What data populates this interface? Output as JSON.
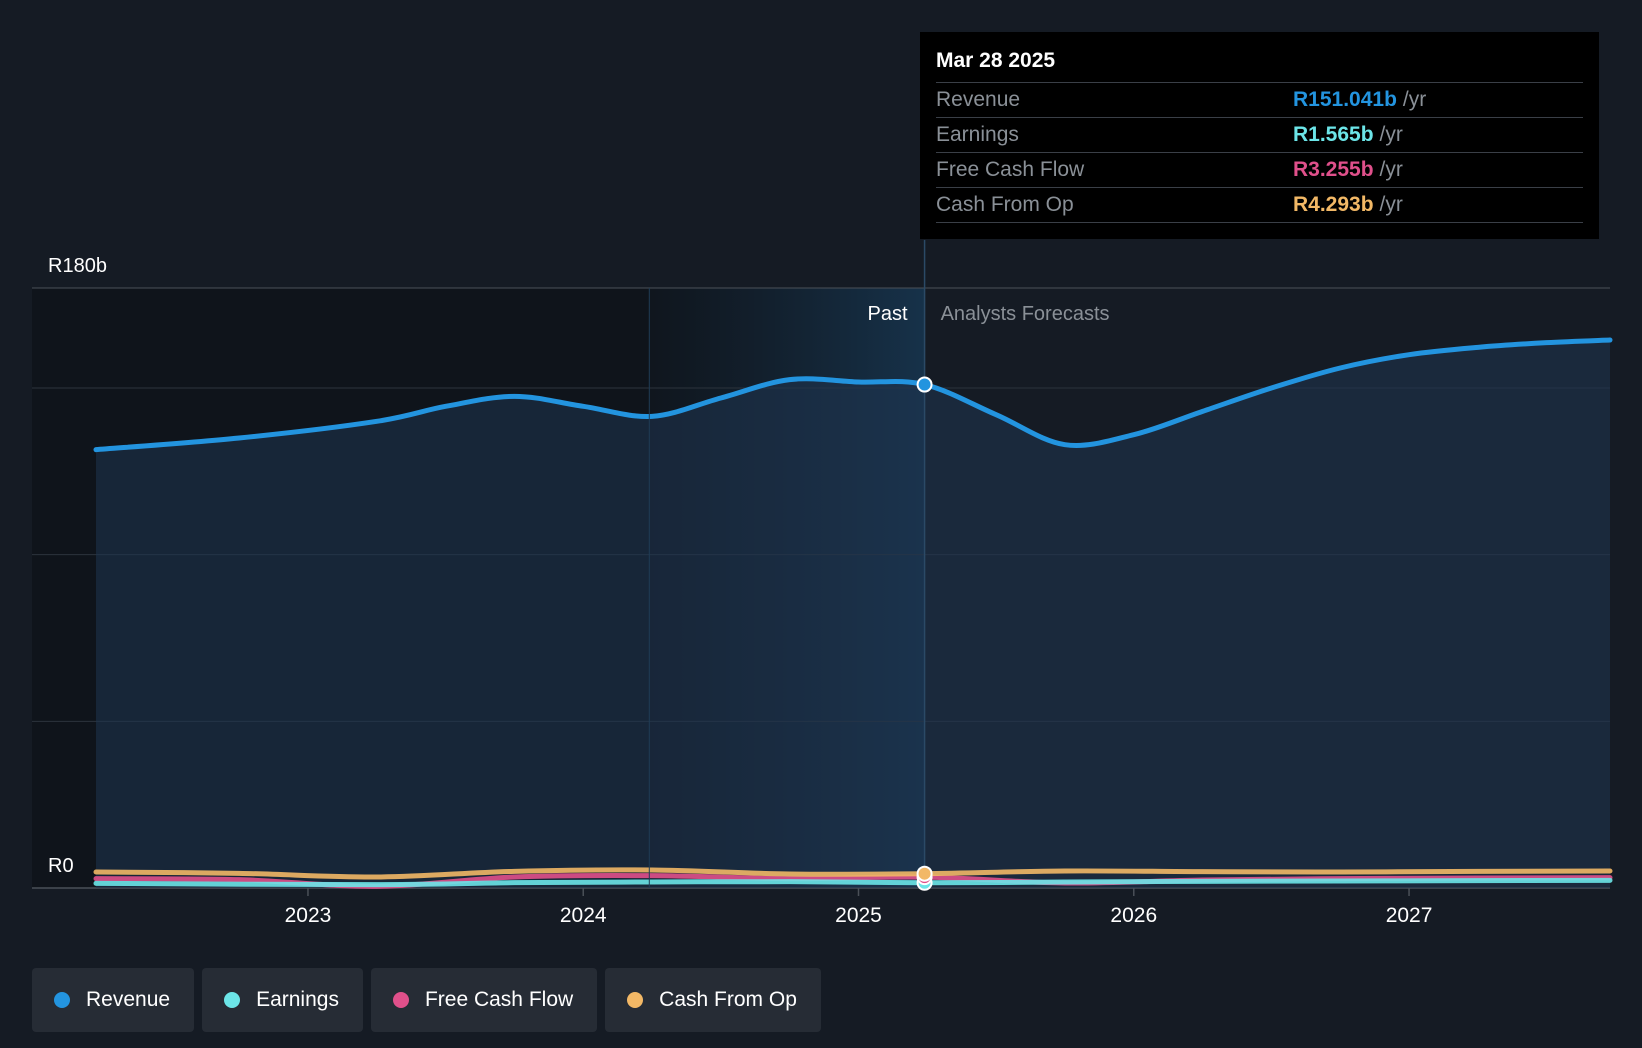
{
  "tooltip": {
    "date": "Mar 28 2025",
    "unit": "/yr",
    "rows": [
      {
        "label": "Revenue",
        "value": "R151.041b",
        "color": "#2394df"
      },
      {
        "label": "Earnings",
        "value": "R1.565b",
        "color": "#6ce5e8"
      },
      {
        "label": "Free Cash Flow",
        "value": "R3.255b",
        "color": "#e0508b"
      },
      {
        "label": "Cash From Op",
        "value": "R4.293b",
        "color": "#f2b866"
      }
    ]
  },
  "legend": [
    {
      "label": "Revenue",
      "color": "#2394df"
    },
    {
      "label": "Earnings",
      "color": "#6ce5e8"
    },
    {
      "label": "Free Cash Flow",
      "color": "#e0508b"
    },
    {
      "label": "Cash From Op",
      "color": "#f2b866"
    }
  ],
  "chart_data": {
    "type": "area",
    "y_top_label": "R180b",
    "y_bottom_label": "R0",
    "ylim": [
      0,
      180
    ],
    "xlim": [
      2022.23,
      2027.73
    ],
    "x_ticks": [
      2023,
      2024,
      2025,
      2026,
      2027
    ],
    "x_tick_labels": [
      "2023",
      "2024",
      "2025",
      "2026",
      "2027"
    ],
    "past_label": "Past",
    "forecast_label": "Analysts Forecasts",
    "divider_x": 2025.24,
    "highlight_start_x": 2024.24,
    "grid": true,
    "series": [
      {
        "name": "Revenue",
        "color": "#2394df",
        "filled": true,
        "x": [
          2022.23,
          2022.75,
          2023.25,
          2023.5,
          2023.75,
          2024.0,
          2024.25,
          2024.5,
          2024.75,
          2025.0,
          2025.24,
          2025.5,
          2025.75,
          2026.0,
          2026.25,
          2026.5,
          2026.75,
          2027.0,
          2027.25,
          2027.5,
          2027.73
        ],
        "values": [
          131.5,
          135,
          140,
          144.5,
          147.5,
          144.5,
          141.5,
          147,
          152.5,
          151.8,
          151.04,
          142,
          133,
          136,
          143,
          150,
          156,
          160,
          162.2,
          163.6,
          164.4
        ]
      },
      {
        "name": "Earnings",
        "color": "#6ce5e8",
        "filled": false,
        "x": [
          2022.23,
          2023.25,
          2023.75,
          2024.25,
          2024.75,
          2025.24,
          2025.75,
          2026.25,
          2026.75,
          2027.25,
          2027.73
        ],
        "values": [
          1.4,
          1.0,
          1.6,
          1.8,
          1.9,
          1.565,
          1.8,
          2.0,
          2.1,
          2.2,
          2.3
        ]
      },
      {
        "name": "Free Cash Flow",
        "color": "#e0508b",
        "filled": false,
        "x": [
          2022.23,
          2022.75,
          2023.25,
          2023.75,
          2024.25,
          2024.75,
          2025.24,
          2025.75,
          2026.25,
          2026.75,
          2027.25,
          2027.73
        ],
        "values": [
          2.8,
          2.5,
          0.5,
          3.3,
          3.7,
          2.8,
          3.255,
          1.5,
          2.4,
          2.8,
          3.0,
          3.1
        ]
      },
      {
        "name": "Cash From Op",
        "color": "#f2b866",
        "filled": false,
        "x": [
          2022.23,
          2022.75,
          2023.25,
          2023.75,
          2024.25,
          2024.75,
          2025.24,
          2025.75,
          2026.25,
          2026.75,
          2027.25,
          2027.73
        ],
        "values": [
          4.8,
          4.4,
          3.3,
          5.0,
          5.4,
          4.2,
          4.293,
          5.1,
          4.9,
          4.8,
          5.0,
          5.1
        ]
      }
    ]
  }
}
